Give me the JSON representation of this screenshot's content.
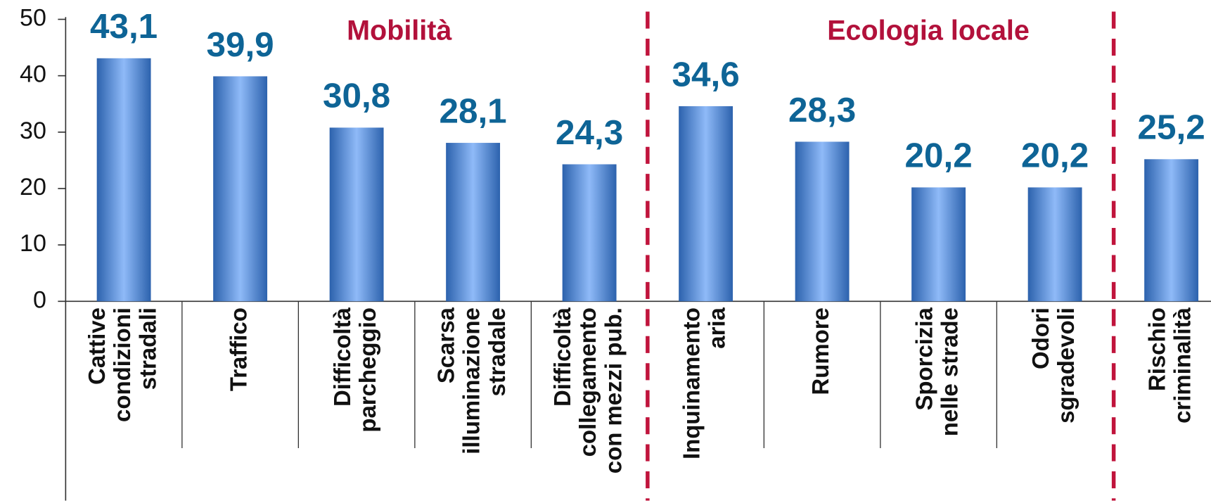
{
  "chart_data": {
    "type": "bar",
    "annotations": [
      "Mobilità",
      "Ecologia locale"
    ],
    "categories": [
      [
        "Cattive",
        "condizioni",
        "stradali"
      ],
      [
        "Traffico"
      ],
      [
        "Difficoltà",
        "parcheggio"
      ],
      [
        "Scarsa",
        "illuminazione",
        "stradale"
      ],
      [
        "Difficoltà",
        "collegamento",
        "con mezzi pub."
      ],
      [
        "Inquinamento",
        "aria"
      ],
      [
        "Rumore"
      ],
      [
        "Sporcizia",
        "nelle strade"
      ],
      [
        "Odori",
        "sgradevoli"
      ],
      [
        "Rischio",
        "criminalità"
      ]
    ],
    "values": [
      43.1,
      39.9,
      30.8,
      28.1,
      24.3,
      34.6,
      28.3,
      20.2,
      20.2,
      25.2
    ],
    "value_labels": [
      "43,1",
      "39,9",
      "30,8",
      "28,1",
      "24,3",
      "34,6",
      "28,3",
      "20,2",
      "20,2",
      "25,2"
    ],
    "color": "#2c62ad",
    "ylim": [
      0,
      50
    ],
    "yticks": [
      0,
      10,
      20,
      30,
      40,
      50
    ],
    "grid": false
  }
}
